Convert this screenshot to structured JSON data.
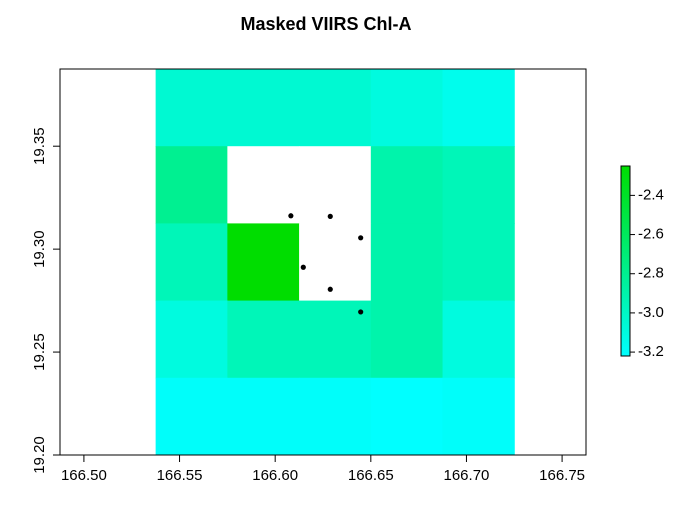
{
  "chart_data": {
    "type": "heatmap",
    "title": "Masked VIIRS Chl-A",
    "xlabel": "",
    "ylabel": "",
    "xlim": [
      166.4875,
      166.7625
    ],
    "ylim": [
      19.2,
      19.3875
    ],
    "x_ticks": [
      166.5,
      166.55,
      166.6,
      166.65,
      166.7,
      166.75
    ],
    "x_tick_labels": [
      "166.50",
      "166.55",
      "166.60",
      "166.65",
      "166.70",
      "166.75"
    ],
    "y_ticks": [
      19.2,
      19.25,
      19.3,
      19.35
    ],
    "y_tick_labels": [
      "19.20",
      "19.25",
      "19.30",
      "19.35"
    ],
    "grid": false,
    "cell_size": 0.0375,
    "x_edges": [
      166.5375,
      166.575,
      166.6125,
      166.65,
      166.6875,
      166.725
    ],
    "y_edges": [
      19.2,
      19.2375,
      19.275,
      19.3125,
      19.35,
      19.3875
    ],
    "rows_top_to_bottom": [
      [
        -3.05,
        -3.05,
        -3.05,
        -3.1,
        -3.15
      ],
      [
        -2.8,
        null,
        null,
        -2.9,
        -2.95
      ],
      [
        -2.95,
        -2.25,
        null,
        -2.9,
        -2.95
      ],
      [
        -3.1,
        -2.95,
        -2.95,
        -2.9,
        -3.1
      ],
      [
        -3.2,
        -3.2,
        -3.2,
        -3.22,
        -3.2
      ]
    ],
    "masked_color": "#ffffff",
    "points": [
      {
        "x": 166.6082,
        "y": 19.3162
      },
      {
        "x": 166.6288,
        "y": 19.3159
      },
      {
        "x": 166.6447,
        "y": 19.3055
      },
      {
        "x": 166.6147,
        "y": 19.2912
      },
      {
        "x": 166.6288,
        "y": 19.2805
      },
      {
        "x": 166.6447,
        "y": 19.2695
      }
    ],
    "point_color": "#000000",
    "colorbar": {
      "placement": "right",
      "min": -3.22,
      "max": -2.25,
      "low_color": "#00ffff",
      "high_color": "#00dd00",
      "ticks": [
        -3.2,
        -3.0,
        -2.8,
        -2.6,
        -2.4
      ],
      "tick_labels": [
        "-3.2",
        "-3.0",
        "-2.8",
        "-2.6",
        "-2.4"
      ]
    }
  }
}
